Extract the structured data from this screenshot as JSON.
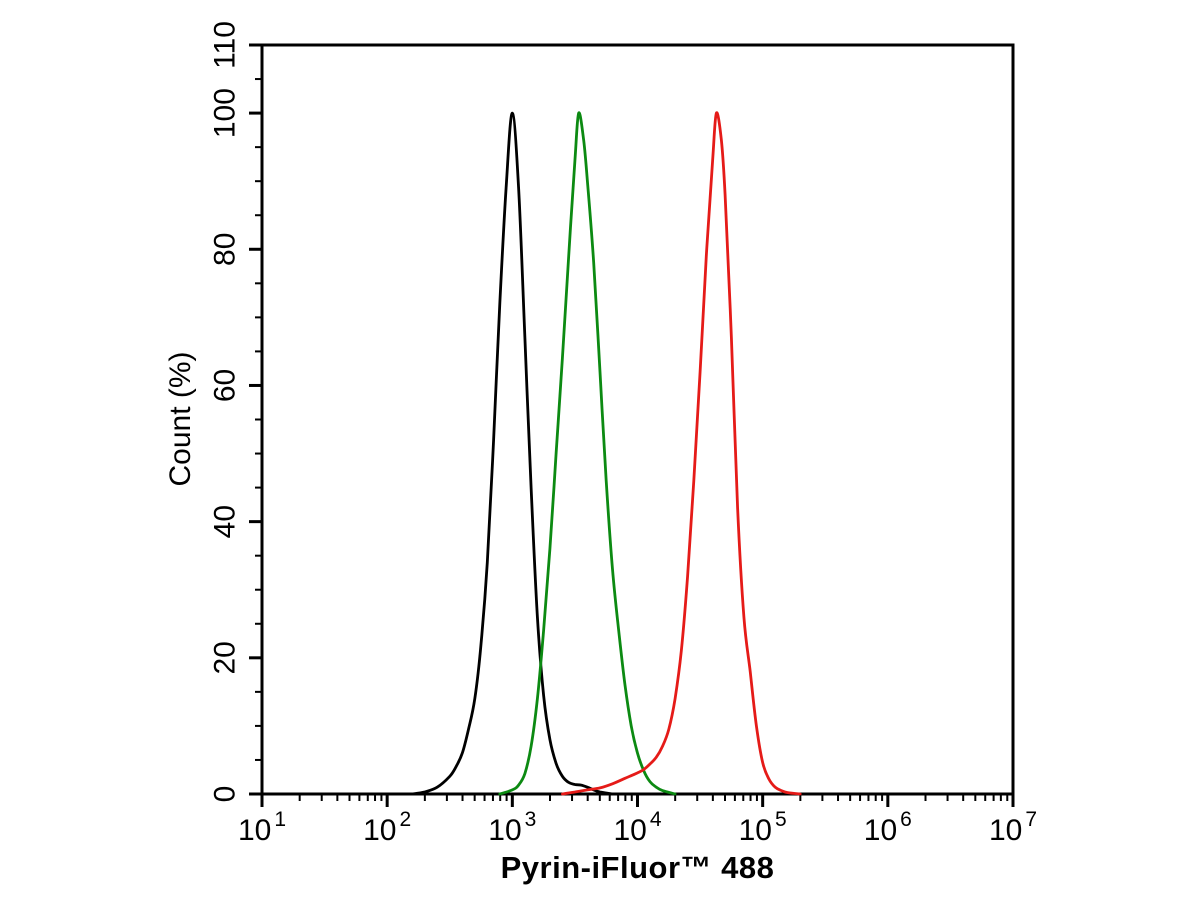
{
  "figure": {
    "background": "#ffffff",
    "axis_color": "#000000",
    "text_color": "#000000"
  },
  "chart_data": {
    "type": "line",
    "chart_kind": "flow-cytometry-overlay-histogram",
    "title": "",
    "xlabel": "Pyrin-iFluor™ 488",
    "ylabel": "Count (%)",
    "x_scale": "log10",
    "x_tick_base": "10",
    "x_tick_exponents": [
      1,
      2,
      3,
      4,
      5,
      6,
      7
    ],
    "x_minor_mantissas": [
      2,
      3,
      4,
      5,
      6,
      7,
      8,
      9
    ],
    "xlim_log10": [
      1,
      7
    ],
    "ylim": [
      0,
      110
    ],
    "y_major_ticks": [
      0,
      20,
      40,
      60,
      80,
      100,
      110
    ],
    "y_minor_step": 5,
    "grid": false,
    "legend": "none",
    "series": [
      {
        "name": "black",
        "color": "#000000",
        "peak_x": 1000,
        "peak_y": 100,
        "points_log10x_y": [
          [
            2.2,
            0
          ],
          [
            2.3,
            0.3
          ],
          [
            2.4,
            1
          ],
          [
            2.5,
            2.6
          ],
          [
            2.55,
            4
          ],
          [
            2.6,
            6
          ],
          [
            2.65,
            9.5
          ],
          [
            2.7,
            14
          ],
          [
            2.75,
            22
          ],
          [
            2.8,
            34
          ],
          [
            2.85,
            52
          ],
          [
            2.9,
            72
          ],
          [
            2.95,
            89
          ],
          [
            3.0,
            100
          ],
          [
            3.05,
            89
          ],
          [
            3.1,
            67
          ],
          [
            3.15,
            45
          ],
          [
            3.2,
            26
          ],
          [
            3.25,
            14.5
          ],
          [
            3.3,
            8
          ],
          [
            3.35,
            4.5
          ],
          [
            3.4,
            2.6
          ],
          [
            3.45,
            1.7
          ],
          [
            3.5,
            1.4
          ],
          [
            3.55,
            1.3
          ],
          [
            3.6,
            1.0
          ],
          [
            3.65,
            0.6
          ],
          [
            3.7,
            0.3
          ],
          [
            3.8,
            0
          ]
        ]
      },
      {
        "name": "green",
        "color": "#0c8a12",
        "peak_x": 3350,
        "peak_y": 100,
        "points_log10x_y": [
          [
            2.9,
            0
          ],
          [
            3.0,
            0.6
          ],
          [
            3.05,
            1.3
          ],
          [
            3.1,
            3
          ],
          [
            3.15,
            7
          ],
          [
            3.2,
            14
          ],
          [
            3.25,
            24
          ],
          [
            3.3,
            36
          ],
          [
            3.35,
            50
          ],
          [
            3.4,
            64
          ],
          [
            3.45,
            79
          ],
          [
            3.5,
            93
          ],
          [
            3.53,
            100
          ],
          [
            3.57,
            96
          ],
          [
            3.6,
            90
          ],
          [
            3.65,
            78
          ],
          [
            3.7,
            62
          ],
          [
            3.75,
            46
          ],
          [
            3.8,
            33
          ],
          [
            3.85,
            24
          ],
          [
            3.9,
            16
          ],
          [
            3.95,
            10
          ],
          [
            4.0,
            6
          ],
          [
            4.05,
            3.4
          ],
          [
            4.1,
            1.8
          ],
          [
            4.15,
            1.0
          ],
          [
            4.2,
            0.5
          ],
          [
            4.3,
            0
          ]
        ]
      },
      {
        "name": "red",
        "color": "#e51b18",
        "peak_x": 42000,
        "peak_y": 100,
        "points_log10x_y": [
          [
            3.4,
            0
          ],
          [
            3.5,
            0.3
          ],
          [
            3.6,
            0.6
          ],
          [
            3.7,
            0.9
          ],
          [
            3.8,
            1.5
          ],
          [
            3.9,
            2.3
          ],
          [
            4.0,
            3.1
          ],
          [
            4.05,
            3.6
          ],
          [
            4.1,
            4.4
          ],
          [
            4.15,
            5.4
          ],
          [
            4.2,
            7
          ],
          [
            4.25,
            9.5
          ],
          [
            4.3,
            14
          ],
          [
            4.35,
            21
          ],
          [
            4.4,
            32
          ],
          [
            4.45,
            46
          ],
          [
            4.5,
            62
          ],
          [
            4.55,
            79
          ],
          [
            4.6,
            93
          ],
          [
            4.63,
            100
          ],
          [
            4.67,
            96
          ],
          [
            4.7,
            88
          ],
          [
            4.75,
            67
          ],
          [
            4.8,
            42
          ],
          [
            4.85,
            26
          ],
          [
            4.9,
            18
          ],
          [
            4.95,
            10
          ],
          [
            5.0,
            4.6
          ],
          [
            5.05,
            2.2
          ],
          [
            5.1,
            1.0
          ],
          [
            5.15,
            0.5
          ],
          [
            5.2,
            0.2
          ],
          [
            5.3,
            0
          ]
        ]
      }
    ]
  }
}
